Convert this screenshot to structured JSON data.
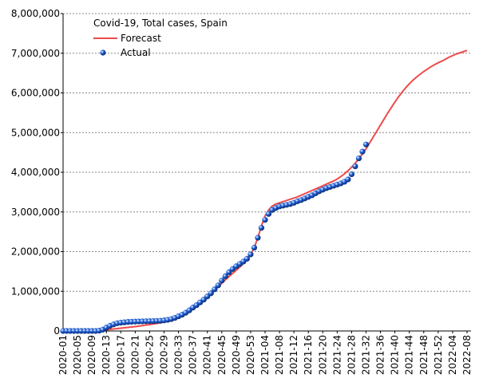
{
  "chart_data": {
    "type": "line",
    "legend_title": "Covid-19, Total cases, Spain",
    "legend": "upper left",
    "grid": true,
    "categories": [
      "2020-01",
      null,
      null,
      null,
      "2020-05",
      null,
      null,
      null,
      "2020-09",
      null,
      null,
      null,
      "2020-13",
      null,
      null,
      null,
      "2020-17",
      null,
      null,
      null,
      "2020-21",
      null,
      null,
      null,
      "2020-25",
      null,
      null,
      null,
      "2020-29",
      null,
      null,
      null,
      "2020-33",
      null,
      null,
      null,
      "2020-37",
      null,
      null,
      null,
      "2020-41",
      null,
      null,
      null,
      "2020-45",
      null,
      null,
      null,
      "2020-49",
      null,
      null,
      null,
      "2020-53",
      null,
      null,
      null,
      "2021-04",
      null,
      null,
      null,
      "2021-08",
      null,
      null,
      null,
      "2021-12",
      null,
      null,
      null,
      "2021-16",
      null,
      null,
      null,
      "2021-20",
      null,
      null,
      null,
      "2021-24",
      null,
      null,
      null,
      "2021-28",
      null,
      null,
      null,
      "2021-32",
      null,
      null,
      null,
      "2021-36",
      null,
      null,
      null,
      "2021-40",
      null,
      null,
      null,
      "2021-44",
      null,
      null,
      null,
      "2021-48",
      null,
      null,
      null,
      "2021-52",
      null,
      null,
      null,
      "2022-04",
      null,
      null,
      null,
      "2022-08"
    ],
    "ylim": [
      0,
      8000000
    ],
    "yticks": [
      0,
      {
        "value": 1000000,
        "label": "1,000,000"
      },
      {
        "value": 2000000,
        "label": "2,000,000"
      },
      {
        "value": 3000000,
        "label": "3,000,000"
      },
      {
        "value": 4000000,
        "label": "4,000,000"
      },
      {
        "value": 5000000,
        "label": "5,000,000"
      },
      {
        "value": 6000000,
        "label": "6,000,000"
      },
      {
        "value": 7000000,
        "label": "7,000,000"
      },
      {
        "value": 8000000,
        "label": "8,000,000"
      }
    ],
    "series": [
      {
        "name": "Forecast",
        "color": "#ef4a4a",
        "style": "line",
        "values": [
          0,
          0,
          0,
          0,
          0,
          0,
          0,
          0,
          0,
          5000,
          10000,
          20000,
          30000,
          40000,
          50000,
          60000,
          70000,
          80000,
          90000,
          100000,
          110000,
          120000,
          135000,
          150000,
          160000,
          175000,
          190000,
          205000,
          225000,
          250000,
          280000,
          320000,
          360000,
          410000,
          460000,
          520000,
          580000,
          640000,
          700000,
          770000,
          850000,
          930000,
          1020000,
          1110000,
          1200000,
          1290000,
          1370000,
          1450000,
          1530000,
          1610000,
          1700000,
          1800000,
          1920000,
          2100000,
          2350000,
          2650000,
          2900000,
          3050000,
          3150000,
          3200000,
          3230000,
          3260000,
          3290000,
          3320000,
          3350000,
          3380000,
          3420000,
          3460000,
          3500000,
          3540000,
          3580000,
          3620000,
          3660000,
          3700000,
          3740000,
          3780000,
          3830000,
          3890000,
          3960000,
          4040000,
          4130000,
          4230000,
          4340000,
          4460000,
          4590000,
          4740000,
          4890000,
          5040000,
          5190000,
          5340000,
          5490000,
          5630000,
          5770000,
          5900000,
          6020000,
          6130000,
          6230000,
          6320000,
          6400000,
          6470000,
          6540000,
          6600000,
          6660000,
          6710000,
          6760000,
          6800000,
          6850000,
          6900000,
          6940000,
          6980000,
          7010000,
          7040000,
          7070000
        ]
      },
      {
        "name": "Actual",
        "color": "#1f5fd6",
        "style": "markers",
        "values": [
          0,
          0,
          0,
          0,
          0,
          0,
          0,
          0,
          0,
          600,
          7700,
          33000,
          85000,
          130000,
          166000,
          195000,
          210000,
          218000,
          228000,
          232000,
          236000,
          240000,
          242000,
          245000,
          247000,
          250000,
          253000,
          258000,
          266000,
          280000,
          300000,
          330000,
          370000,
          410000,
          460000,
          520000,
          590000,
          650000,
          720000,
          790000,
          870000,
          950000,
          1050000,
          1150000,
          1270000,
          1380000,
          1480000,
          1560000,
          1630000,
          1690000,
          1750000,
          1820000,
          1930000,
          2100000,
          2350000,
          2600000,
          2800000,
          2950000,
          3050000,
          3100000,
          3140000,
          3160000,
          3180000,
          3200000,
          3230000,
          3270000,
          3300000,
          3340000,
          3380000,
          3420000,
          3470000,
          3520000,
          3560000,
          3600000,
          3630000,
          3660000,
          3690000,
          3720000,
          3760000,
          3820000,
          3950000,
          4150000,
          4350000,
          4520000,
          4700000,
          null,
          null,
          null,
          null,
          null,
          null,
          null,
          null,
          null,
          null,
          null,
          null,
          null,
          null,
          null,
          null,
          null,
          null,
          null,
          null,
          null,
          null,
          null,
          null,
          null,
          null,
          null,
          null
        ]
      }
    ]
  }
}
